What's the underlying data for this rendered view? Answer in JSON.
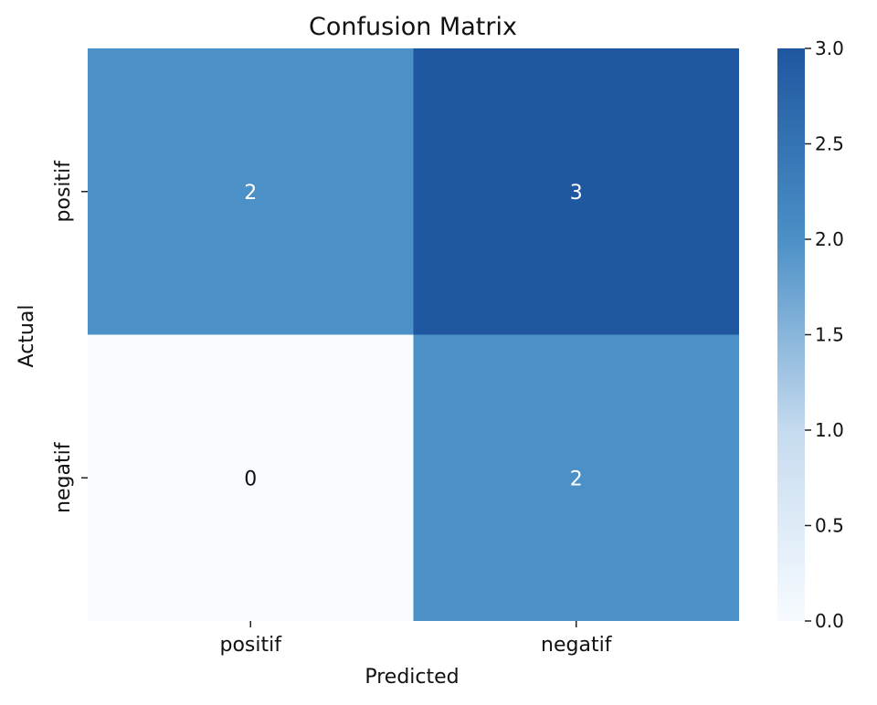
{
  "chart_data": {
    "type": "heatmap",
    "title": "Confusion Matrix",
    "xlabel": "Predicted",
    "ylabel": "Actual",
    "x_categories": [
      "positif",
      "negatif"
    ],
    "y_categories": [
      "positif",
      "negatif"
    ],
    "values": [
      [
        2,
        3
      ],
      [
        0,
        2
      ]
    ],
    "colorbar": {
      "min": 0.0,
      "max": 3.0,
      "ticks": [
        "0.0",
        "0.5",
        "1.0",
        "1.5",
        "2.0",
        "2.5",
        "3.0"
      ],
      "colormap": "Blues",
      "colors": {
        "low": "#f7fbff",
        "mid": "#6baed6",
        "high": "#08519c"
      }
    }
  }
}
